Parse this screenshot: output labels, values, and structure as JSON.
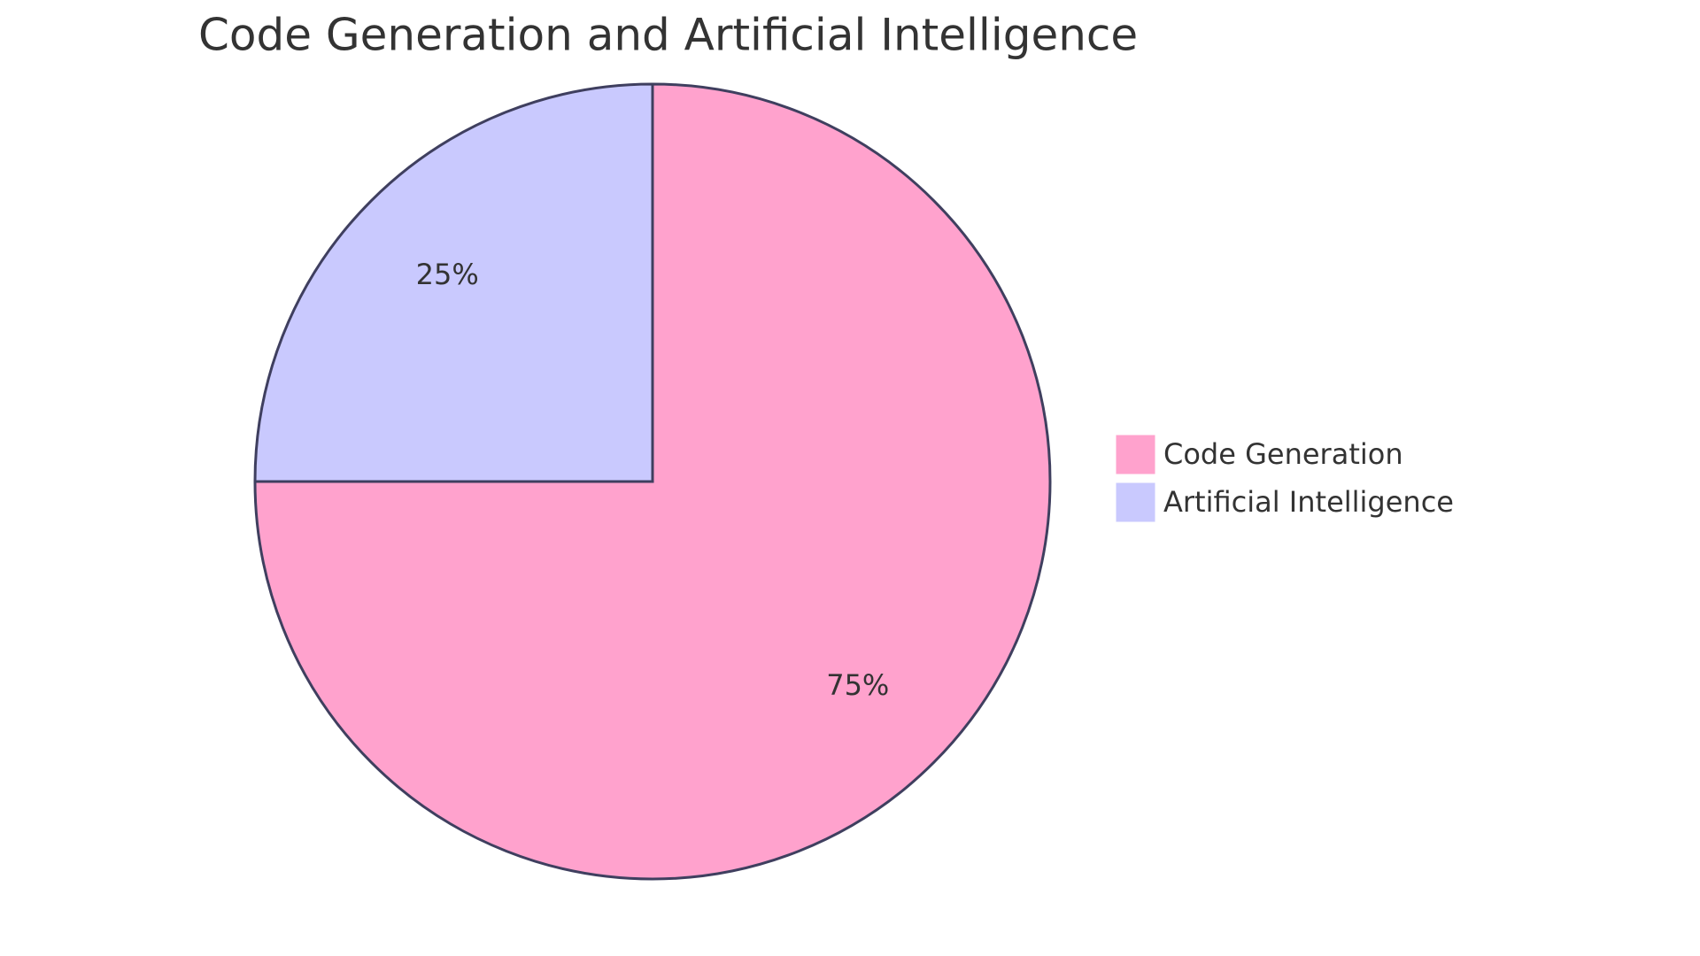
{
  "chart_data": {
    "type": "pie",
    "title": "Code Generation and Artificial Intelligence",
    "categories": [
      "Code Generation",
      "Artificial Intelligence"
    ],
    "values": [
      75,
      25
    ],
    "value_labels": [
      "75%",
      "25%"
    ],
    "colors": [
      "#ffa2cd",
      "#c9c9fe"
    ],
    "legend": "right"
  }
}
